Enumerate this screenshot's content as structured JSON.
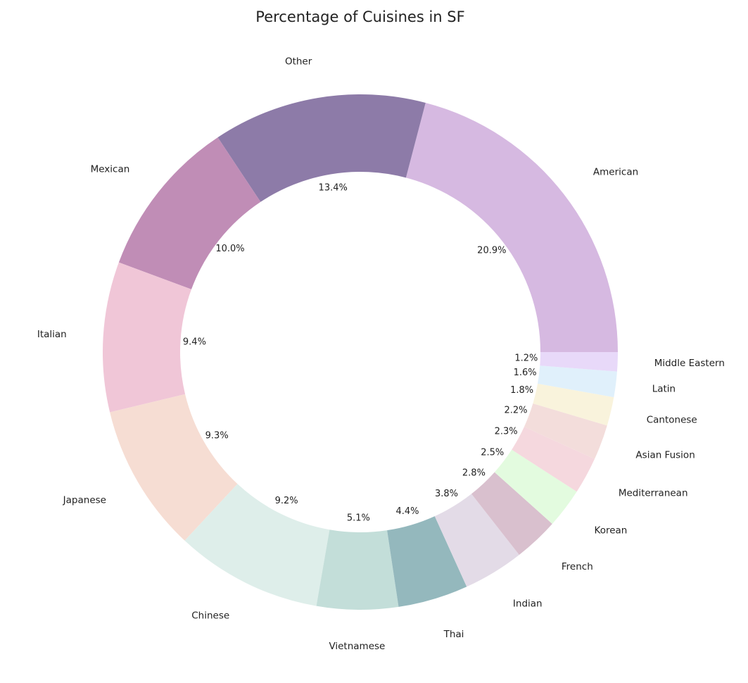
{
  "chart_data": {
    "type": "pie",
    "variant": "donut",
    "title": "Percentage of Cuisines in SF",
    "start_angle_deg": 0,
    "direction": "counterclockwise",
    "legend": "none",
    "slices": [
      {
        "name": "American",
        "value": 20.9,
        "pct_label": "20.9%",
        "color": "#d6b9e1"
      },
      {
        "name": "Other",
        "value": 13.4,
        "pct_label": "13.4%",
        "color": "#8d7ba8"
      },
      {
        "name": "Mexican",
        "value": 10.0,
        "pct_label": "10.0%",
        "color": "#c08db6"
      },
      {
        "name": "Italian",
        "value": 9.4,
        "pct_label": "9.4%",
        "color": "#f0c6d7"
      },
      {
        "name": "Japanese",
        "value": 9.3,
        "pct_label": "9.3%",
        "color": "#f6ddd3"
      },
      {
        "name": "Chinese",
        "value": 9.2,
        "pct_label": "9.2%",
        "color": "#deeeea"
      },
      {
        "name": "Vietnamese",
        "value": 5.1,
        "pct_label": "5.1%",
        "color": "#c3ded9"
      },
      {
        "name": "Thai",
        "value": 4.4,
        "pct_label": "4.4%",
        "color": "#94b8bd"
      },
      {
        "name": "Indian",
        "value": 3.8,
        "pct_label": "3.8%",
        "color": "#e3dbe7"
      },
      {
        "name": "French",
        "value": 2.8,
        "pct_label": "2.8%",
        "color": "#d9c0ce"
      },
      {
        "name": "Korean",
        "value": 2.5,
        "pct_label": "2.5%",
        "color": "#e3fbdf"
      },
      {
        "name": "Mediterranean",
        "value": 2.3,
        "pct_label": "2.3%",
        "color": "#f5d8de"
      },
      {
        "name": "Asian Fusion",
        "value": 2.2,
        "pct_label": "2.2%",
        "color": "#f3dddb"
      },
      {
        "name": "Cantonese",
        "value": 1.8,
        "pct_label": "1.8%",
        "color": "#f9f3dc"
      },
      {
        "name": "Latin",
        "value": 1.6,
        "pct_label": "1.6%",
        "color": "#e0f0fb"
      },
      {
        "name": "Middle Eastern",
        "value": 1.2,
        "pct_label": "1.2%",
        "color": "#e8d9f9"
      }
    ]
  }
}
